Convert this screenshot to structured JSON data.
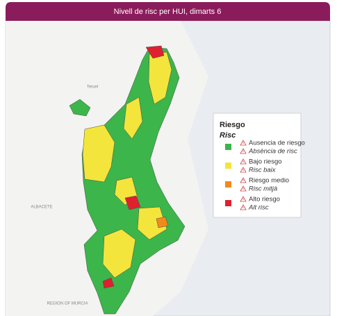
{
  "header": {
    "title": "Nivell de risc per HUI, dimarts 6"
  },
  "map_labels": [
    "Teruel",
    "ALBACETE",
    "REGION OF MURCIA"
  ],
  "legend": {
    "title": "Riesgo",
    "subtitle": "Risc",
    "items": [
      {
        "label_es": "Ausencia de riesgo",
        "label_va": "Absència de risc",
        "color": "#3cb54a"
      },
      {
        "label_es": "Bajo riesgo",
        "label_va": "Risc baix",
        "color": "#f3e53c"
      },
      {
        "label_es": "Riesgo medio",
        "label_va": "Risc mitjà",
        "color": "#f08a1c"
      },
      {
        "label_es": "Alto riesgo",
        "label_va": "Alt risc",
        "color": "#e0202e"
      }
    ]
  }
}
